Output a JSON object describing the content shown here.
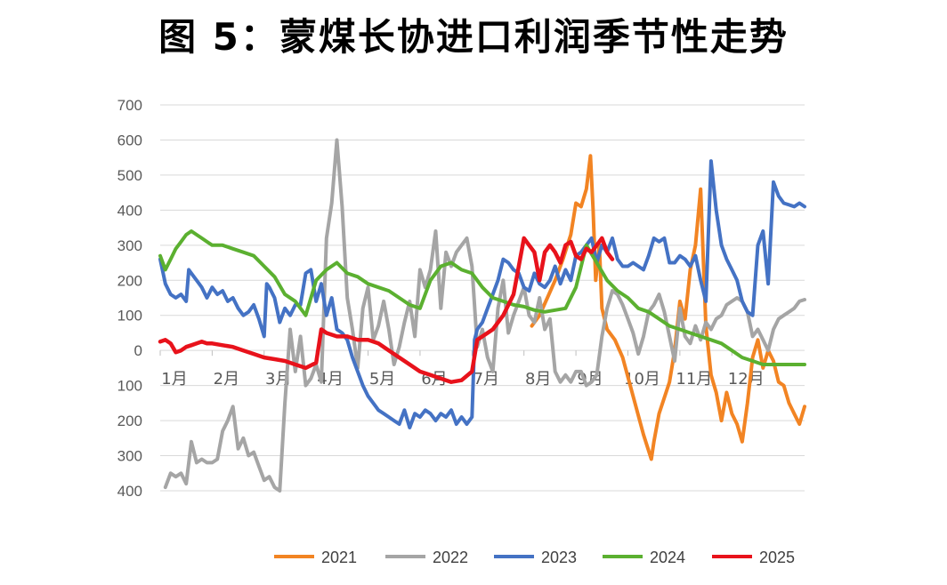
{
  "title": "图 5：蒙煤长协进口利润季节性走势",
  "chart_data": {
    "type": "line",
    "title": "图 5：蒙煤长协进口利润季节性走势",
    "xlabel": "",
    "ylabel": "",
    "x_unit": "month",
    "xlim": [
      1,
      13.4
    ],
    "ylim": [
      -400,
      700
    ],
    "yticks": [
      700,
      600,
      500,
      400,
      300,
      200,
      100,
      0,
      -100,
      -200,
      -300,
      -400
    ],
    "ytick_labels": [
      "700",
      "600",
      "500",
      "400",
      "300",
      "200",
      "100",
      "0",
      "100",
      "200",
      "300",
      "400"
    ],
    "xticks": [
      1,
      2,
      3,
      4,
      5,
      6,
      7,
      8,
      9,
      10,
      11,
      12
    ],
    "xtick_labels": [
      "1月",
      "2月",
      "3月",
      "4月",
      "5月",
      "6月",
      "7月",
      "8月",
      "9月",
      "10月",
      "11月",
      "12月"
    ],
    "grid": true,
    "legend_position": "bottom",
    "series": [
      {
        "name": "2021",
        "color": "#F28423",
        "x": [
          8.15,
          8.3,
          8.45,
          8.6,
          8.75,
          8.9,
          9.0,
          9.1,
          9.2,
          9.28,
          9.33,
          9.38,
          9.45,
          9.5,
          9.6,
          9.75,
          9.9,
          10.1,
          10.3,
          10.45,
          10.5,
          10.6,
          10.8,
          10.9,
          11.0,
          11.1,
          11.2,
          11.3,
          11.4,
          11.5,
          11.6,
          11.7,
          11.8,
          11.9,
          12.0,
          12.1,
          12.2,
          12.3,
          12.4,
          12.5,
          12.6,
          12.7,
          12.8,
          12.9,
          13.0,
          13.1,
          13.2,
          13.3,
          13.4
        ],
        "values": [
          70,
          100,
          150,
          200,
          260,
          330,
          420,
          410,
          460,
          555,
          400,
          200,
          300,
          120,
          60,
          30,
          -20,
          -130,
          -240,
          -310,
          -260,
          -180,
          -90,
          0,
          140,
          90,
          230,
          300,
          460,
          70,
          -70,
          -120,
          -200,
          -120,
          -180,
          -210,
          -260,
          -150,
          -20,
          30,
          -50,
          0,
          -30,
          -90,
          -100,
          -150,
          -180,
          -210,
          -160
        ]
      },
      {
        "name": "2022",
        "color": "#A5A5A5",
        "x": [
          1.1,
          1.2,
          1.3,
          1.4,
          1.5,
          1.6,
          1.7,
          1.8,
          1.9,
          2.0,
          2.1,
          2.2,
          2.3,
          2.4,
          2.5,
          2.6,
          2.7,
          2.8,
          2.9,
          3.0,
          3.1,
          3.2,
          3.3,
          3.4,
          3.5,
          3.6,
          3.7,
          3.8,
          3.9,
          4.0,
          4.1,
          4.2,
          4.3,
          4.4,
          4.5,
          4.6,
          4.7,
          4.8,
          4.9,
          5.0,
          5.1,
          5.2,
          5.3,
          5.4,
          5.5,
          5.6,
          5.7,
          5.8,
          5.9,
          6.0,
          6.1,
          6.2,
          6.3,
          6.4,
          6.5,
          6.6,
          6.7,
          6.8,
          6.9,
          7.0,
          7.1,
          7.2,
          7.3,
          7.4,
          7.5,
          7.6,
          7.7,
          7.8,
          7.9,
          8.0,
          8.1,
          8.2,
          8.3,
          8.4,
          8.5,
          8.6,
          8.7,
          8.8,
          8.9,
          9.0,
          9.1,
          9.2,
          9.3,
          9.4,
          9.5,
          9.6,
          9.7,
          9.8,
          9.9,
          10.0,
          10.1,
          10.2,
          10.3,
          10.4,
          10.5,
          10.6,
          10.7,
          10.8,
          10.9,
          11.0,
          11.1,
          11.2,
          11.3,
          11.4,
          11.5,
          11.6,
          11.7,
          11.8,
          11.9,
          12.0,
          12.1,
          12.2,
          12.3,
          12.4,
          12.5,
          12.6,
          12.7,
          12.8,
          12.9,
          13.0,
          13.1,
          13.2,
          13.3,
          13.4
        ],
        "values": [
          -390,
          -350,
          -360,
          -350,
          -380,
          -260,
          -320,
          -310,
          -320,
          -320,
          -310,
          -230,
          -200,
          -160,
          -280,
          -250,
          -300,
          -290,
          -330,
          -370,
          -360,
          -390,
          -400,
          -150,
          60,
          -60,
          40,
          -100,
          -80,
          -40,
          -90,
          320,
          420,
          600,
          410,
          150,
          60,
          -50,
          120,
          180,
          30,
          70,
          140,
          60,
          -40,
          10,
          80,
          140,
          40,
          230,
          180,
          230,
          340,
          120,
          280,
          240,
          280,
          300,
          320,
          240,
          10,
          60,
          -20,
          -60,
          120,
          200,
          50,
          100,
          140,
          180,
          100,
          80,
          150,
          60,
          90,
          -60,
          -90,
          -70,
          -90,
          -60,
          -60,
          -100,
          -90,
          -70,
          40,
          120,
          170,
          160,
          130,
          90,
          50,
          -10,
          40,
          110,
          130,
          160,
          110,
          40,
          -30,
          120,
          40,
          20,
          70,
          30,
          80,
          60,
          90,
          100,
          130,
          140,
          150,
          140,
          110,
          40,
          60,
          30,
          0,
          60,
          90,
          100,
          110,
          120,
          140,
          145
        ]
      },
      {
        "name": "2023",
        "color": "#4472C4",
        "x": [
          1.0,
          1.1,
          1.2,
          1.3,
          1.4,
          1.5,
          1.55,
          1.6,
          1.7,
          1.8,
          1.9,
          2.0,
          2.1,
          2.2,
          2.3,
          2.4,
          2.5,
          2.6,
          2.7,
          2.8,
          2.9,
          3.0,
          3.05,
          3.1,
          3.2,
          3.3,
          3.4,
          3.5,
          3.6,
          3.7,
          3.8,
          3.9,
          4.0,
          4.1,
          4.2,
          4.3,
          4.4,
          4.5,
          4.6,
          4.7,
          4.8,
          4.9,
          5.0,
          5.1,
          5.2,
          5.3,
          5.4,
          5.5,
          5.6,
          5.7,
          5.8,
          5.9,
          6.0,
          6.1,
          6.2,
          6.3,
          6.4,
          6.5,
          6.6,
          6.7,
          6.8,
          6.9,
          7.0,
          7.05,
          7.1,
          7.2,
          7.3,
          7.4,
          7.5,
          7.6,
          7.7,
          7.8,
          7.9,
          8.0,
          8.1,
          8.2,
          8.3,
          8.4,
          8.5,
          8.6,
          8.7,
          8.8,
          8.9,
          9.0,
          9.1,
          9.2,
          9.3,
          9.4,
          9.5,
          9.6,
          9.7,
          9.8,
          9.9,
          10.0,
          10.1,
          10.2,
          10.3,
          10.4,
          10.5,
          10.6,
          10.7,
          10.8,
          10.9,
          11.0,
          11.1,
          11.2,
          11.3,
          11.4,
          11.5,
          11.6,
          11.7,
          11.8,
          11.9,
          12.0,
          12.1,
          12.2,
          12.3,
          12.4,
          12.5,
          12.6,
          12.7,
          12.8,
          12.9,
          13.0,
          13.1,
          13.2,
          13.3,
          13.4
        ],
        "values": [
          260,
          190,
          160,
          150,
          160,
          140,
          230,
          220,
          200,
          180,
          150,
          180,
          160,
          170,
          140,
          150,
          120,
          100,
          110,
          130,
          90,
          40,
          190,
          180,
          150,
          80,
          120,
          100,
          130,
          130,
          220,
          230,
          140,
          190,
          100,
          150,
          60,
          50,
          30,
          -20,
          -60,
          -100,
          -130,
          -150,
          -170,
          -180,
          -190,
          -200,
          -210,
          -170,
          -220,
          -180,
          -190,
          -170,
          -180,
          -200,
          -180,
          -190,
          -170,
          -210,
          -190,
          -210,
          -190,
          30,
          60,
          80,
          120,
          160,
          200,
          260,
          250,
          230,
          220,
          180,
          170,
          220,
          190,
          180,
          200,
          240,
          190,
          230,
          200,
          270,
          280,
          300,
          320,
          250,
          300,
          280,
          320,
          260,
          240,
          240,
          250,
          240,
          230,
          270,
          320,
          310,
          320,
          250,
          250,
          270,
          260,
          240,
          270,
          200,
          140,
          540,
          400,
          300,
          260,
          230,
          200,
          140,
          110,
          100,
          300,
          340,
          190,
          480,
          440,
          420,
          415,
          410,
          420,
          410
        ]
      },
      {
        "name": "2024",
        "color": "#5BB030",
        "x": [
          1.0,
          1.1,
          1.2,
          1.3,
          1.4,
          1.5,
          1.6,
          1.7,
          1.8,
          1.9,
          2.0,
          2.2,
          2.4,
          2.6,
          2.8,
          3.0,
          3.2,
          3.4,
          3.6,
          3.8,
          4.0,
          4.2,
          4.4,
          4.6,
          4.8,
          5.0,
          5.2,
          5.4,
          5.6,
          5.8,
          6.0,
          6.2,
          6.4,
          6.6,
          6.8,
          7.0,
          7.2,
          7.4,
          7.6,
          7.8,
          8.0,
          8.2,
          8.4,
          8.6,
          8.8,
          9.0,
          9.2,
          9.4,
          9.6,
          9.8,
          10.0,
          10.2,
          10.4,
          10.6,
          10.8,
          11.0,
          11.2,
          11.4,
          11.6,
          11.8,
          12.0,
          12.2,
          12.4,
          12.6,
          12.8,
          13.0,
          13.2,
          13.4
        ],
        "values": [
          270,
          230,
          260,
          290,
          310,
          330,
          340,
          330,
          320,
          310,
          300,
          300,
          290,
          280,
          270,
          240,
          210,
          160,
          140,
          100,
          200,
          230,
          250,
          220,
          210,
          190,
          180,
          170,
          150,
          130,
          120,
          200,
          240,
          250,
          230,
          220,
          180,
          150,
          140,
          130,
          125,
          115,
          110,
          115,
          120,
          180,
          300,
          250,
          200,
          170,
          150,
          120,
          110,
          90,
          70,
          60,
          50,
          40,
          30,
          20,
          0,
          -20,
          -30,
          -40,
          -40,
          -40,
          -40,
          -40
        ]
      },
      {
        "name": "2025",
        "color": "#E8121B",
        "x": [
          1.0,
          1.1,
          1.2,
          1.3,
          1.4,
          1.5,
          1.6,
          1.7,
          1.8,
          1.9,
          2.0,
          2.2,
          2.4,
          2.6,
          2.8,
          3.0,
          3.2,
          3.4,
          3.6,
          3.8,
          4.0,
          4.1,
          4.2,
          4.4,
          4.6,
          4.8,
          5.0,
          5.2,
          5.4,
          5.6,
          5.8,
          6.0,
          6.2,
          6.4,
          6.6,
          6.8,
          7.0,
          7.1,
          7.2,
          7.4,
          7.6,
          7.8,
          8.0,
          8.1,
          8.2,
          8.3,
          8.4,
          8.5,
          8.6,
          8.7,
          8.8,
          8.9,
          9.0,
          9.1,
          9.2,
          9.3,
          9.4,
          9.5,
          9.6,
          9.7
        ],
        "values": [
          25,
          30,
          20,
          -5,
          0,
          10,
          15,
          20,
          25,
          20,
          20,
          15,
          10,
          0,
          -10,
          -20,
          -25,
          -30,
          -40,
          -50,
          -35,
          60,
          50,
          40,
          40,
          30,
          30,
          20,
          0,
          -20,
          -40,
          -60,
          -70,
          -80,
          -90,
          -85,
          -60,
          30,
          40,
          60,
          100,
          160,
          320,
          300,
          280,
          200,
          280,
          300,
          280,
          250,
          300,
          310,
          270,
          260,
          290,
          280,
          300,
          320,
          280,
          260
        ]
      }
    ]
  }
}
